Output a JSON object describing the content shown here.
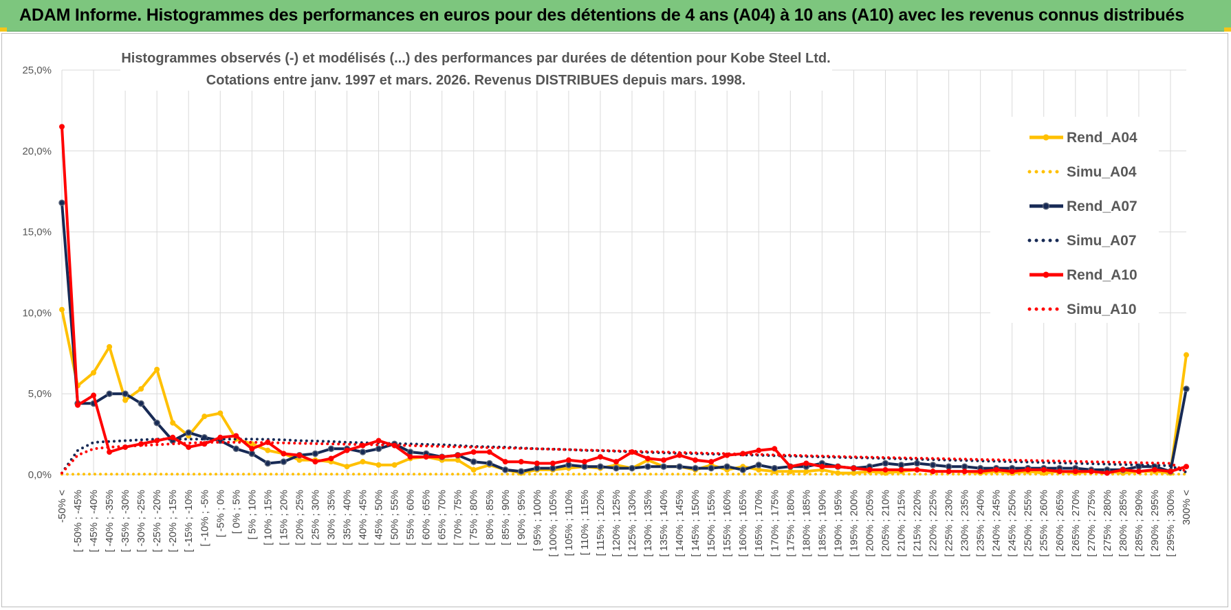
{
  "header": {
    "title": "ADAM Informe. Histogrammes des performances en euros pour des détentions de 4 ans (A04) à 10 ans (A10) avec les revenus connus distribués"
  },
  "chart_data": {
    "type": "line",
    "title_line1": "Histogrammes observés (-) et modélisés (...) des performances par durées de détention pour Kobe Steel Ltd.",
    "title_line2": "Cotations entre janv. 1997 et mars. 2026.  Revenus DISTRIBUES depuis mars. 1998.",
    "ylim": [
      0,
      25
    ],
    "yticks": [
      "0,0%",
      "5,0%",
      "10,0%",
      "15,0%",
      "20,0%",
      "25,0%"
    ],
    "grid": true,
    "legend_position": "right",
    "categories": [
      "-50% <",
      "[ -50% ; -45%",
      "[ -45% ; -40%",
      "[ -40% ; -35%",
      "[ -35% ; -30%",
      "[ -30% ; -25%",
      "[ -25% ; -20%",
      "[ -20% ; -15%",
      "[ -15% ; -10%",
      "[ -10% ; -5%",
      "[ -5% ; 0%",
      "[ 0% ; 5%",
      "[ 5% ; 10%",
      "[ 10% ; 15%",
      "[ 15% ; 20%",
      "[ 20% ; 25%",
      "[ 25% ; 30%",
      "[ 30% ; 35%",
      "[ 35% ; 40%",
      "[ 40% ; 45%",
      "[ 45% ; 50%",
      "[ 50% ; 55%",
      "[ 55% ; 60%",
      "[ 60% ; 65%",
      "[ 65% ; 70%",
      "[ 70% ; 75%",
      "[ 75% ; 80%",
      "[ 80% ; 85%",
      "[ 85% ; 90%",
      "[ 90% ; 95%",
      "[ 95% ; 100%",
      "[ 100% ; 105%",
      "[ 105% ; 110%",
      "[ 110% ; 115%",
      "[ 115% ; 120%",
      "[ 120% ; 125%",
      "[ 125% ; 130%",
      "[ 130% ; 135%",
      "[ 135% ; 140%",
      "[ 140% ; 145%",
      "[ 145% ; 150%",
      "[ 150% ; 155%",
      "[ 155% ; 160%",
      "[ 160% ; 165%",
      "[ 165% ; 170%",
      "[ 170% ; 175%",
      "[ 175% ; 180%",
      "[ 180% ; 185%",
      "[ 185% ; 190%",
      "[ 190% ; 195%",
      "[ 195% ; 200%",
      "[ 200% ; 205%",
      "[ 205% ; 210%",
      "[ 210% ; 215%",
      "[ 215% ; 220%",
      "[ 220% ; 225%",
      "[ 225% ; 230%",
      "[ 230% ; 235%",
      "[ 235% ; 240%",
      "[ 240% ; 245%",
      "[ 245% ; 250%",
      "[ 250% ; 255%",
      "[ 255% ; 260%",
      "[ 260% ; 265%",
      "[ 265% ; 270%",
      "[ 270% ; 275%",
      "[ 275% ; 280%",
      "[ 280% ; 285%",
      "[ 285% ; 290%",
      "[ 290% ; 295%",
      "[ 295% ; 300%",
      "300% <"
    ],
    "series": [
      {
        "name": "Rend_A04",
        "style": "solid",
        "color": "#ffc000",
        "values": [
          10.2,
          5.5,
          6.3,
          7.9,
          4.6,
          5.3,
          6.5,
          3.2,
          2.4,
          3.6,
          3.8,
          2.2,
          1.9,
          1.5,
          1.3,
          0.9,
          0.9,
          0.8,
          0.5,
          0.8,
          0.6,
          0.6,
          1.0,
          1.1,
          0.9,
          0.9,
          0.3,
          0.6,
          0.3,
          0.1,
          0.3,
          0.3,
          0.4,
          0.5,
          0.4,
          0.6,
          0.4,
          0.9,
          0.5,
          0.5,
          0.3,
          0.6,
          0.3,
          0.5,
          0.3,
          0.2,
          0.2,
          0.2,
          0.3,
          0.1,
          0.1,
          0.2,
          0.1,
          0.2,
          0.3,
          0.2,
          0.2,
          0.2,
          0.1,
          0.2,
          0.1,
          0.2,
          0.1,
          0.2,
          0.1,
          0.2,
          0.2,
          0.1,
          0.2,
          0.2,
          0.1,
          7.4
        ]
      },
      {
        "name": "Simu_A04",
        "style": "dotted",
        "color": "#ffc000",
        "values": [
          0.02,
          0.03,
          0.03,
          0.03,
          0.03,
          0.03,
          0.03,
          0.03,
          0.03,
          0.03,
          0.03,
          0.03,
          0.03,
          0.03,
          0.03,
          0.03,
          0.03,
          0.03,
          0.03,
          0.03,
          0.03,
          0.03,
          0.03,
          0.03,
          0.03,
          0.03,
          0.03,
          0.03,
          0.03,
          0.03,
          0.03,
          0.03,
          0.03,
          0.03,
          0.03,
          0.03,
          0.03,
          0.03,
          0.03,
          0.03,
          0.03,
          0.03,
          0.03,
          0.03,
          0.03,
          0.03,
          0.03,
          0.03,
          0.03,
          0.03,
          0.03,
          0.03,
          0.03,
          0.03,
          0.03,
          0.03,
          0.03,
          0.03,
          0.03,
          0.03,
          0.03,
          0.03,
          0.03,
          0.03,
          0.03,
          0.03,
          0.03,
          0.03,
          0.03,
          0.03,
          0.03,
          0.03
        ]
      },
      {
        "name": "Rend_A07",
        "style": "solid",
        "color": "#172a55",
        "values": [
          16.8,
          4.4,
          4.4,
          5.0,
          5.0,
          4.4,
          3.2,
          2.1,
          2.6,
          2.3,
          2.1,
          1.6,
          1.3,
          0.7,
          0.8,
          1.2,
          1.3,
          1.6,
          1.6,
          1.4,
          1.6,
          1.9,
          1.4,
          1.3,
          1.1,
          1.2,
          0.8,
          0.7,
          0.3,
          0.2,
          0.4,
          0.4,
          0.6,
          0.5,
          0.5,
          0.4,
          0.4,
          0.5,
          0.5,
          0.5,
          0.4,
          0.4,
          0.5,
          0.3,
          0.6,
          0.4,
          0.5,
          0.5,
          0.7,
          0.5,
          0.4,
          0.5,
          0.7,
          0.6,
          0.7,
          0.6,
          0.5,
          0.5,
          0.4,
          0.4,
          0.4,
          0.4,
          0.4,
          0.4,
          0.4,
          0.3,
          0.3,
          0.3,
          0.5,
          0.5,
          0.2,
          5.3
        ]
      },
      {
        "name": "Simu_A07",
        "style": "dotted",
        "color": "#172a55",
        "values": [
          0.1,
          1.5,
          2.0,
          2.05,
          2.1,
          2.15,
          2.2,
          2.2,
          2.2,
          2.2,
          2.2,
          2.2,
          2.2,
          2.18,
          2.15,
          2.1,
          2.08,
          2.05,
          2.0,
          1.98,
          1.95,
          1.92,
          1.9,
          1.87,
          1.85,
          1.8,
          1.75,
          1.72,
          1.7,
          1.65,
          1.6,
          1.58,
          1.55,
          1.5,
          1.48,
          1.45,
          1.4,
          1.38,
          1.35,
          1.32,
          1.3,
          1.27,
          1.25,
          1.22,
          1.2,
          1.17,
          1.15,
          1.12,
          1.1,
          1.07,
          1.05,
          1.03,
          1.0,
          0.98,
          0.95,
          0.93,
          0.9,
          0.88,
          0.85,
          0.83,
          0.8,
          0.78,
          0.75,
          0.73,
          0.7,
          0.68,
          0.65,
          0.63,
          0.6,
          0.58,
          0.55,
          0.15
        ]
      },
      {
        "name": "Rend_A10",
        "style": "solid",
        "color": "#ff0000",
        "values": [
          21.5,
          4.3,
          4.9,
          1.4,
          1.7,
          1.9,
          2.1,
          2.3,
          1.7,
          1.9,
          2.3,
          2.4,
          1.6,
          2.0,
          1.3,
          1.2,
          0.8,
          1.0,
          1.5,
          1.8,
          2.1,
          1.8,
          1.1,
          1.1,
          1.1,
          1.2,
          1.4,
          1.4,
          0.8,
          0.8,
          0.7,
          0.7,
          0.9,
          0.8,
          1.1,
          0.8,
          1.4,
          1.0,
          0.9,
          1.2,
          0.9,
          0.8,
          1.2,
          1.3,
          1.5,
          1.6,
          0.5,
          0.7,
          0.5,
          0.5,
          0.4,
          0.3,
          0.3,
          0.3,
          0.3,
          0.2,
          0.2,
          0.2,
          0.2,
          0.3,
          0.2,
          0.3,
          0.3,
          0.2,
          0.2,
          0.2,
          0.1,
          0.3,
          0.2,
          0.3,
          0.2,
          0.5
        ]
      },
      {
        "name": "Simu_A10",
        "style": "dotted",
        "color": "#ff0000",
        "values": [
          0.1,
          1.2,
          1.6,
          1.7,
          1.75,
          1.8,
          1.85,
          1.9,
          1.95,
          2.0,
          2.0,
          2.0,
          2.0,
          1.98,
          1.96,
          1.94,
          1.92,
          1.9,
          1.88,
          1.86,
          1.84,
          1.82,
          1.8,
          1.77,
          1.75,
          1.72,
          1.7,
          1.67,
          1.65,
          1.62,
          1.6,
          1.57,
          1.55,
          1.52,
          1.5,
          1.47,
          1.45,
          1.42,
          1.4,
          1.37,
          1.35,
          1.32,
          1.3,
          1.27,
          1.25,
          1.22,
          1.2,
          1.17,
          1.15,
          1.12,
          1.1,
          1.08,
          1.06,
          1.04,
          1.02,
          1.0,
          0.98,
          0.96,
          0.94,
          0.92,
          0.9,
          0.88,
          0.86,
          0.84,
          0.82,
          0.8,
          0.78,
          0.76,
          0.74,
          0.72,
          0.7,
          0.2
        ]
      }
    ]
  }
}
